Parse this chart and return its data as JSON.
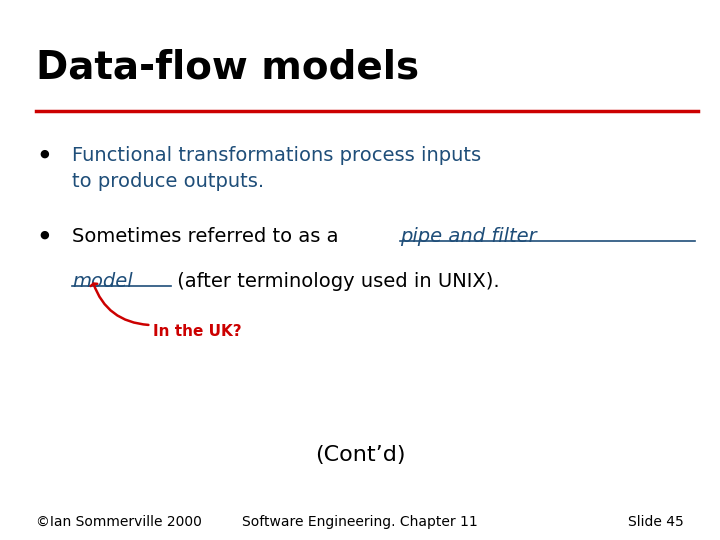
{
  "title": "Data-flow models",
  "title_color": "#000000",
  "title_fontsize": 28,
  "title_bold": true,
  "separator_color": "#CC0000",
  "bullet1_text": "Functional transformations process inputs\nto produce outputs.",
  "bullet1_color": "#1F4E79",
  "bullet2_part1": "Sometimes referred to as a ",
  "bullet2_link_line1": "pipe and filter",
  "bullet2_link_line2": "model",
  "bullet2_part2": " (after terminology used in UNIX).",
  "bullet2_color": "#000000",
  "bullet2_link_color": "#1F4E79",
  "bullet_dot_color": "#000000",
  "annotation_text": "In the UK?",
  "annotation_color": "#CC0000",
  "annotation_fontsize": 11,
  "cont_text": "(Cont’d)",
  "cont_color": "#000000",
  "cont_fontsize": 16,
  "footer_left": "©Ian Sommerville 2000",
  "footer_mid": "Software Engineering. Chapter 11",
  "footer_right": "Slide 45",
  "footer_color": "#000000",
  "footer_fontsize": 10,
  "background_color": "#FFFFFF"
}
